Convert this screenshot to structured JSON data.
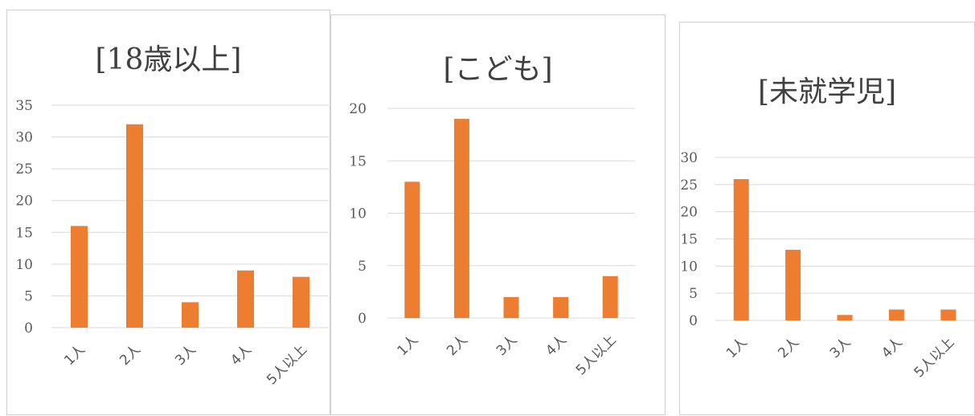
{
  "chart_data": [
    {
      "type": "bar",
      "title": "[18歳以上]",
      "categories": [
        "1人",
        "2人",
        "3人",
        "4人",
        "5人以上"
      ],
      "values": [
        16,
        32,
        4,
        9,
        8
      ],
      "ylim": [
        0,
        35
      ],
      "yticks": [
        0,
        5,
        10,
        15,
        20,
        25,
        30,
        35
      ],
      "grid": true,
      "color": "#ED7D31"
    },
    {
      "type": "bar",
      "title": "[こども]",
      "categories": [
        "1人",
        "2人",
        "3人",
        "4人",
        "5人以上"
      ],
      "values": [
        13,
        19,
        2,
        2,
        4
      ],
      "ylim": [
        0,
        20
      ],
      "yticks": [
        0,
        5,
        10,
        15,
        20
      ],
      "grid": true,
      "color": "#ED7D31"
    },
    {
      "type": "bar",
      "title": "[未就学児]",
      "categories": [
        "1人",
        "2人",
        "3人",
        "4人",
        "5人以上"
      ],
      "values": [
        26,
        13,
        1,
        2,
        2
      ],
      "ylim": [
        0,
        30
      ],
      "yticks": [
        0,
        5,
        10,
        15,
        20,
        25,
        30
      ],
      "grid": true,
      "color": "#ED7D31"
    }
  ]
}
